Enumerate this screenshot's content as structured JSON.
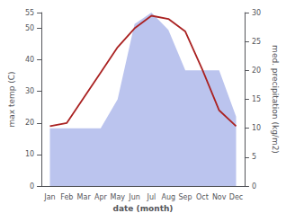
{
  "chart_data": {
    "type": "line",
    "xlabel": "date (month)",
    "ylabel": "max temp (C)",
    "y2label": "med. precipitation (kg/m2)",
    "categories": [
      "Jan",
      "Feb",
      "Mar",
      "Apr",
      "May",
      "Jun",
      "Jul",
      "Aug",
      "Sep",
      "Oct",
      "Nov",
      "Dec"
    ],
    "series": [
      {
        "type": "area",
        "axis": "y2",
        "color": "#bbc4ee",
        "values": [
          10,
          10,
          10,
          10,
          15,
          28,
          30,
          27,
          20,
          20,
          20,
          12
        ]
      },
      {
        "type": "line",
        "color": "#aa2222",
        "values": [
          19,
          20,
          28,
          36,
          44,
          50,
          54,
          53,
          49,
          37,
          24,
          19
        ]
      }
    ],
    "ylim": [
      0,
      55
    ],
    "yticks": [
      0,
      10,
      20,
      30,
      40,
      50
    ],
    "y2lim": [
      0,
      30
    ],
    "y2ticks": [
      0,
      5,
      10,
      15,
      20,
      25,
      30
    ],
    "grid": false
  }
}
